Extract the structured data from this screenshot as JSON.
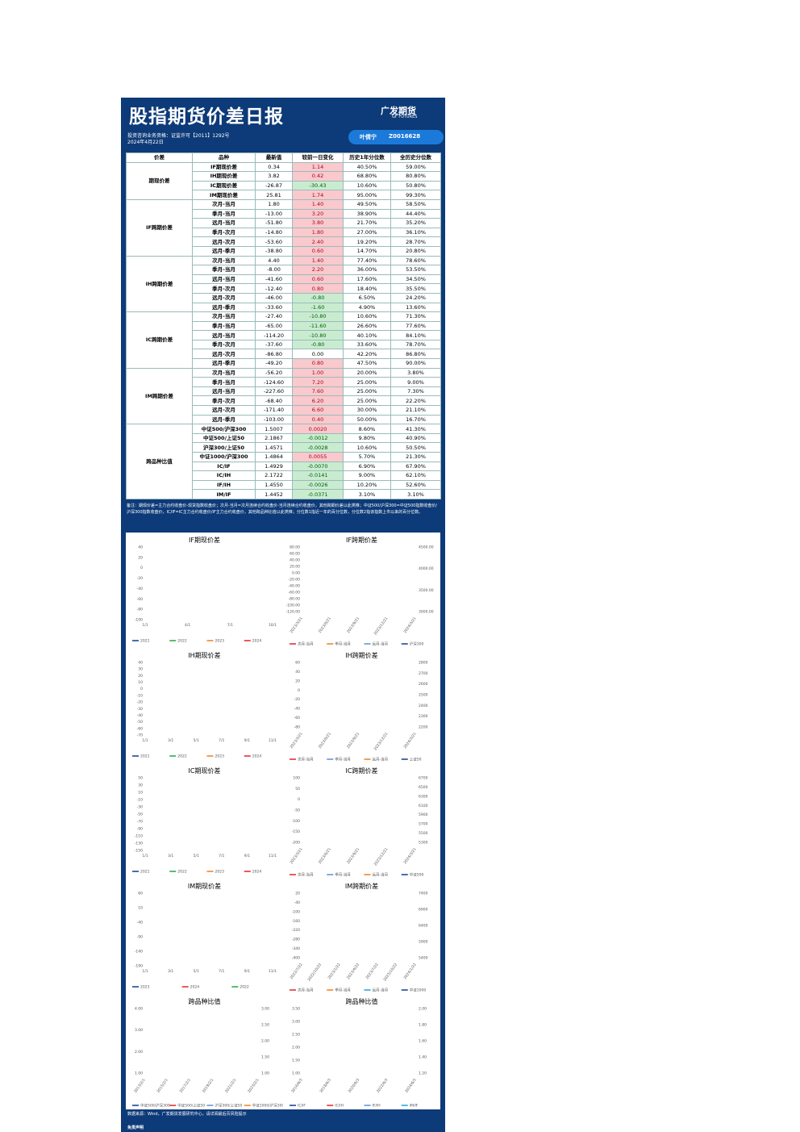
{
  "header": {
    "title": "股指期货价差日报",
    "logo": "广发期货",
    "logo_en": "GF FUTURES",
    "license": "投资咨询业务资格：证监许可【2011】1292号",
    "date": "2024年4月22日",
    "analyst": "叶倩宁",
    "analyst_id": "Z0016628"
  },
  "table": {
    "columns": [
      "价差",
      "品种",
      "最新值",
      "较前一日变化",
      "历史1年分位数",
      "全历史分位数"
    ],
    "groups": [
      {
        "name": "期现价差",
        "rows": [
          [
            "IF期现价差",
            "0.34",
            "1.14",
            "40.50%",
            "59.00%"
          ],
          [
            "IH期现价差",
            "3.82",
            "0.42",
            "68.80%",
            "80.80%"
          ],
          [
            "IC期现价差",
            "-26.87",
            "-30.43",
            "10.60%",
            "50.80%"
          ],
          [
            "IM期现价差",
            "25.81",
            "1.74",
            "95.00%",
            "99.30%"
          ]
        ]
      },
      {
        "name": "IF跨期价差",
        "rows": [
          [
            "次月-当月",
            "1.80",
            "1.40",
            "49.50%",
            "58.50%"
          ],
          [
            "季月-当月",
            "-13.00",
            "3.20",
            "38.90%",
            "44.40%"
          ],
          [
            "远月-当月",
            "-51.80",
            "3.80",
            "21.70%",
            "35.20%"
          ],
          [
            "季月-次月",
            "-14.80",
            "1.80",
            "27.00%",
            "36.10%"
          ],
          [
            "远月-次月",
            "-53.60",
            "2.40",
            "19.20%",
            "28.70%"
          ],
          [
            "远月-季月",
            "-38.80",
            "0.60",
            "14.70%",
            "20.80%"
          ]
        ]
      },
      {
        "name": "IH跨期价差",
        "rows": [
          [
            "次月-当月",
            "4.40",
            "1.40",
            "77.40%",
            "78.60%"
          ],
          [
            "季月-当月",
            "-8.00",
            "2.20",
            "36.00%",
            "53.50%"
          ],
          [
            "远月-当月",
            "-41.60",
            "0.60",
            "17.60%",
            "34.50%"
          ],
          [
            "季月-次月",
            "-12.40",
            "0.80",
            "18.40%",
            "35.50%"
          ],
          [
            "远月-次月",
            "-46.00",
            "-0.80",
            "6.50%",
            "24.20%"
          ],
          [
            "远月-季月",
            "-33.60",
            "-1.60",
            "4.90%",
            "13.60%"
          ]
        ]
      },
      {
        "name": "IC跨期价差",
        "rows": [
          [
            "次月-当月",
            "-27.40",
            "-10.80",
            "10.60%",
            "71.30%"
          ],
          [
            "季月-当月",
            "-65.00",
            "-11.60",
            "26.60%",
            "77.60%"
          ],
          [
            "远月-当月",
            "-114.20",
            "-10.80",
            "40.10%",
            "84.10%"
          ],
          [
            "季月-次月",
            "-37.60",
            "-0.80",
            "33.60%",
            "78.70%"
          ],
          [
            "远月-次月",
            "-86.80",
            "0.00",
            "42.20%",
            "86.80%"
          ],
          [
            "远月-季月",
            "-49.20",
            "0.80",
            "47.50%",
            "90.00%"
          ]
        ]
      },
      {
        "name": "IM跨期价差",
        "rows": [
          [
            "次月-当月",
            "-56.20",
            "1.00",
            "20.00%",
            "3.80%"
          ],
          [
            "季月-当月",
            "-124.60",
            "7.20",
            "25.00%",
            "9.00%"
          ],
          [
            "远月-当月",
            "-227.60",
            "7.60",
            "25.00%",
            "7.30%"
          ],
          [
            "季月-次月",
            "-68.40",
            "6.20",
            "25.00%",
            "22.20%"
          ],
          [
            "远月-次月",
            "-171.40",
            "6.60",
            "30.00%",
            "21.10%"
          ],
          [
            "远月-季月",
            "-103.00",
            "0.40",
            "50.00%",
            "16.70%"
          ]
        ]
      },
      {
        "name": "跨品种比值",
        "rows": [
          [
            "中证500/沪深300",
            "1.5007",
            "0.0020",
            "8.60%",
            "41.30%"
          ],
          [
            "中证500/上证50",
            "2.1867",
            "-0.0012",
            "9.80%",
            "40.90%"
          ],
          [
            "沪深300/上证50",
            "1.4571",
            "-0.0028",
            "10.60%",
            "50.50%"
          ],
          [
            "中证1000/沪深300",
            "1.4864",
            "0.0055",
            "5.70%",
            "21.30%"
          ],
          [
            "IC/IF",
            "1.4929",
            "-0.0070",
            "6.90%",
            "67.90%"
          ],
          [
            "IC/IH",
            "2.1722",
            "-0.0141",
            "9.00%",
            "62.10%"
          ],
          [
            "IF/IH",
            "1.4550",
            "-0.0026",
            "10.20%",
            "52.60%"
          ],
          [
            "IM/IF",
            "1.4452",
            "-0.0371",
            "3.10%",
            "3.10%"
          ]
        ]
      }
    ]
  },
  "note": "备注：期现价差=主力合约收盘价-现货指数收盘价；次月-当月=次月连续合约收盘价-当月连续合约收盘价，其他跨期价差以此类推；中证500/沪深300=中证500指数收盘价/沪深300指数收盘价，IC/IF=IC主力合约收盘价/IF主力合约收盘价，其他跨品种比值以此类推；分位数1指近一年的百分位数，分位数2指该指数上市以来的百分位数。",
  "charts": [
    {
      "title": "IF期现价差",
      "yticks": [
        "40",
        "20",
        "0",
        "-20",
        "-40",
        "-60",
        "-80",
        "-100"
      ],
      "y2ticks": [],
      "x": [
        "1/1",
        "4/1",
        "7/1",
        "10/1"
      ],
      "legend": [
        {
          "name": "2021",
          "color": "#0b3d91"
        },
        {
          "name": "2022",
          "color": "#1fa83a"
        },
        {
          "name": "2023",
          "color": "#f07d1e"
        },
        {
          "name": "2024",
          "color": "#e02424"
        }
      ]
    },
    {
      "title": "IF跨期价差",
      "yticks": [
        "80.00",
        "60.00",
        "40.00",
        "20.00",
        "0.00",
        "-20.00",
        "-40.00",
        "-60.00",
        "-80.00",
        "-100.00",
        "-120.00"
      ],
      "y2ticks": [
        "4500.00",
        "4000.00",
        "3500.00",
        "3000.00"
      ],
      "x": [
        "2023/3/21",
        "2023/6/21",
        "2023/9/21",
        "2023/12/21",
        "2024/3/21"
      ],
      "legend": [
        {
          "name": "次月-当月",
          "color": "#e02424"
        },
        {
          "name": "季月-当月",
          "color": "#f07d1e"
        },
        {
          "name": "远月-当月",
          "color": "#5b8fd9"
        },
        {
          "name": "沪深300",
          "color": "#0b3d91"
        }
      ]
    },
    {
      "title": "IH期现价差",
      "yticks": [
        "40",
        "30",
        "20",
        "10",
        "0",
        "-10",
        "-20",
        "-30",
        "-40",
        "-50",
        "-60",
        "-70"
      ],
      "y2ticks": [],
      "x": [
        "1/1",
        "3/1",
        "5/1",
        "7/1",
        "9/1",
        "11/1"
      ],
      "legend": [
        {
          "name": "2021",
          "color": "#0b3d91"
        },
        {
          "name": "2022",
          "color": "#1fa83a"
        },
        {
          "name": "2023",
          "color": "#f07d1e"
        },
        {
          "name": "2024",
          "color": "#e02424"
        }
      ]
    },
    {
      "title": "IH跨期价差",
      "yticks": [
        "60",
        "40",
        "20",
        "0",
        "-20",
        "-40",
        "-60",
        "-80"
      ],
      "y2ticks": [
        "2800",
        "2700",
        "2600",
        "2500",
        "2400",
        "2300",
        "2200"
      ],
      "x": [
        "2023/3/21",
        "2023/6/21",
        "2023/9/21",
        "2023/12/21",
        "2024/3/21"
      ],
      "legend": [
        {
          "name": "次月-当月",
          "color": "#e02424"
        },
        {
          "name": "季月-当月",
          "color": "#5b8fd9"
        },
        {
          "name": "远月-当月",
          "color": "#f07d1e"
        },
        {
          "name": "上证50",
          "color": "#0b3d91"
        }
      ]
    },
    {
      "title": "IC期现价差",
      "yticks": [
        "50",
        "30",
        "10",
        "-10",
        "-30",
        "-50",
        "-70",
        "-90",
        "-110",
        "-130",
        "-150"
      ],
      "y2ticks": [],
      "x": [
        "1/1",
        "3/1",
        "5/1",
        "7/1",
        "9/1",
        "11/1"
      ],
      "legend": [
        {
          "name": "2021",
          "color": "#0b3d91"
        },
        {
          "name": "2022",
          "color": "#1fa83a"
        },
        {
          "name": "2023",
          "color": "#f07d1e"
        },
        {
          "name": "2024",
          "color": "#e02424"
        }
      ]
    },
    {
      "title": "IC跨期价差",
      "yticks": [
        "100",
        "50",
        "0",
        "-50",
        "-100",
        "-150",
        "-200"
      ],
      "y2ticks": [
        "6700",
        "6500",
        "6300",
        "6100",
        "5900",
        "5700",
        "5500",
        "5300"
      ],
      "x": [
        "2023/3/21",
        "2023/6/21",
        "2023/9/21",
        "2023/12/21",
        "2024/3/21"
      ],
      "legend": [
        {
          "name": "次月-当月",
          "color": "#e02424"
        },
        {
          "name": "季月-当月",
          "color": "#5b8fd9"
        },
        {
          "name": "远月-当月",
          "color": "#f07d1e"
        },
        {
          "name": "中证500",
          "color": "#0b3d91"
        }
      ]
    },
    {
      "title": "IM期现价差",
      "yticks": [
        "60",
        "10",
        "-40",
        "-90",
        "-140",
        "-190"
      ],
      "y2ticks": [],
      "x": [
        "1/1",
        "3/1",
        "5/1",
        "7/1",
        "9/1",
        "11/1"
      ],
      "legend": [
        {
          "name": "2023",
          "color": "#0b3d91"
        },
        {
          "name": "2024",
          "color": "#e02424"
        },
        {
          "name": "2022",
          "color": "#1fa83a"
        }
      ]
    },
    {
      "title": "IM跨期价差",
      "yticks": [
        "20",
        "-40",
        "-100",
        "-160",
        "-220",
        "-280",
        "-340",
        "-400"
      ],
      "y2ticks": [
        "7400",
        "6900",
        "6400",
        "5900",
        "5400"
      ],
      "x": [
        "2022/7/22",
        "2022/10/22",
        "2023/1/22",
        "2023/4/22",
        "2023/7/22",
        "2023/10/22",
        "2024/1/22"
      ],
      "legend": [
        {
          "name": "次月-当月",
          "color": "#e02424"
        },
        {
          "name": "季月-当月",
          "color": "#f07d1e"
        },
        {
          "name": "远月-当月",
          "color": "#1aa3d9"
        },
        {
          "name": "中证1000",
          "color": "#0b3d91"
        }
      ]
    },
    {
      "title": "跨品种比值",
      "yticks": [
        "4.00",
        "3.00",
        "2.00",
        "1.00"
      ],
      "y2ticks": [
        "3.00",
        "2.50",
        "2.00",
        "1.50",
        "1.00"
      ],
      "x": [
        "2013/2/1",
        "2015/2/1",
        "2017/2/1",
        "2019/2/1",
        "2021/2/1",
        "2023/2/1"
      ],
      "legend": [
        {
          "name": "中证500/沪深300",
          "color": "#0b3d91"
        },
        {
          "name": "中证500/上证50",
          "color": "#e02424"
        },
        {
          "name": "沪深300/上证50",
          "color": "#5b8fd9"
        },
        {
          "name": "中证1000/沪深300",
          "color": "#f07d1e"
        }
      ]
    },
    {
      "title": "跨品种比值",
      "yticks": [
        "3.50",
        "3.00",
        "2.50",
        "2.00",
        "1.50",
        "1.00"
      ],
      "y2ticks": [
        "2.00",
        "1.80",
        "1.60",
        "1.40",
        "1.20"
      ],
      "x": [
        "2016/6/3",
        "2018/6/3",
        "2020/6/3",
        "2022/6/3",
        "2024/6/3"
      ],
      "legend": [
        {
          "name": "IC/IF",
          "color": "#0b3d91"
        },
        {
          "name": "IC/IH",
          "color": "#e02424"
        },
        {
          "name": "IF/IH",
          "color": "#5b8fd9"
        },
        {
          "name": "IM/IF",
          "color": "#1aa3d9"
        }
      ]
    }
  ],
  "footer": {
    "source": "数据来源：Wind，广发期货发展研究中心，请详阅最后页风险提示",
    "disclaimer": "免责声明"
  }
}
